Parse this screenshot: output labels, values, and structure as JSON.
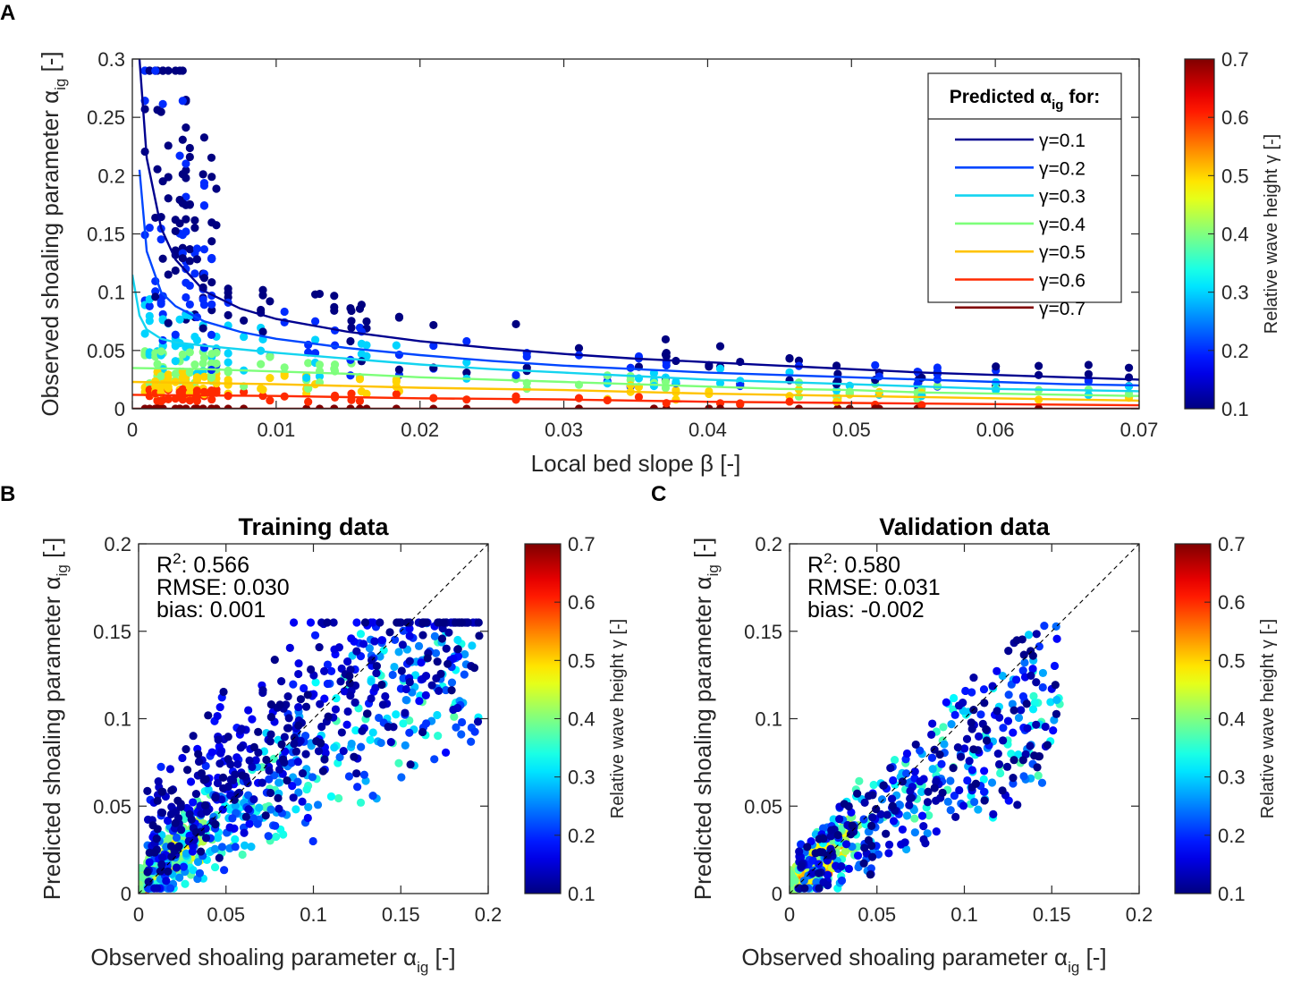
{
  "chart_data": [
    {
      "panel": "A",
      "type": "scatter",
      "title": "",
      "xlabel": "Local bed slope β [-]",
      "ylabel": "Observed shoaling parameter α",
      "ylabel_sub": "ig",
      "ylabel_suffix": " [-]",
      "xlim": [
        0,
        0.07
      ],
      "ylim": [
        0,
        0.3
      ],
      "xticks": [
        0,
        0.01,
        0.02,
        0.03,
        0.04,
        0.05,
        0.06,
        0.07
      ],
      "xtick_labels": [
        "0",
        "0.01",
        "0.02",
        "0.03",
        "0.04",
        "0.05",
        "0.06",
        "0.07"
      ],
      "yticks": [
        0,
        0.05,
        0.1,
        0.15,
        0.2,
        0.25,
        0.3
      ],
      "ytick_labels": [
        "0",
        "0.05",
        "0.1",
        "0.15",
        "0.2",
        "0.25",
        "0.3"
      ],
      "legend_title": "Predicted α",
      "legend_title_sub": "ig",
      "legend_title_suffix": " for:",
      "legend_position": "top-right",
      "series": [
        {
          "name": "γ=0.1",
          "gamma": 0.1,
          "color": "#00008f",
          "x": [
            0.0005,
            0.001,
            0.002,
            0.003,
            0.005,
            0.0075,
            0.01,
            0.015,
            0.02,
            0.025,
            0.03,
            0.035,
            0.04,
            0.045,
            0.05,
            0.055,
            0.06,
            0.065,
            0.07
          ],
          "y": [
            0.3,
            0.215,
            0.155,
            0.128,
            0.101,
            0.086,
            0.077,
            0.066,
            0.058,
            0.052,
            0.047,
            0.043,
            0.04,
            0.037,
            0.034,
            0.031,
            0.029,
            0.027,
            0.025
          ]
        },
        {
          "name": "γ=0.2",
          "gamma": 0.2,
          "color": "#0046ff",
          "x": [
            0.0005,
            0.001,
            0.002,
            0.003,
            0.005,
            0.0075,
            0.01,
            0.015,
            0.02,
            0.025,
            0.03,
            0.035,
            0.04,
            0.045,
            0.05,
            0.055,
            0.06,
            0.065,
            0.07
          ],
          "y": [
            0.205,
            0.135,
            0.1,
            0.088,
            0.075,
            0.066,
            0.06,
            0.052,
            0.046,
            0.041,
            0.037,
            0.034,
            0.031,
            0.029,
            0.027,
            0.025,
            0.023,
            0.021,
            0.02
          ]
        },
        {
          "name": "γ=0.3",
          "gamma": 0.3,
          "color": "#14d4f0",
          "x": [
            0.0,
            0.0005,
            0.001,
            0.002,
            0.003,
            0.005,
            0.0075,
            0.01,
            0.015,
            0.02,
            0.025,
            0.03,
            0.035,
            0.04,
            0.045,
            0.05,
            0.055,
            0.06,
            0.065,
            0.07
          ],
          "y": [
            0.115,
            0.08,
            0.068,
            0.06,
            0.057,
            0.054,
            0.051,
            0.048,
            0.043,
            0.038,
            0.034,
            0.031,
            0.028,
            0.025,
            0.023,
            0.021,
            0.019,
            0.017,
            0.016,
            0.015
          ]
        },
        {
          "name": "γ=0.4",
          "gamma": 0.4,
          "color": "#7dff7a",
          "x": [
            0.0,
            0.005,
            0.01,
            0.015,
            0.02,
            0.025,
            0.03,
            0.035,
            0.04,
            0.045,
            0.05,
            0.055,
            0.06,
            0.065,
            0.07
          ],
          "y": [
            0.035,
            0.034,
            0.032,
            0.03,
            0.027,
            0.025,
            0.023,
            0.021,
            0.019,
            0.017,
            0.016,
            0.014,
            0.013,
            0.012,
            0.011
          ]
        },
        {
          "name": "γ=0.5",
          "gamma": 0.5,
          "color": "#ffc300",
          "x": [
            0.0,
            0.01,
            0.02,
            0.03,
            0.04,
            0.05,
            0.06,
            0.07
          ],
          "y": [
            0.023,
            0.021,
            0.018,
            0.016,
            0.013,
            0.011,
            0.009,
            0.007
          ]
        },
        {
          "name": "γ=0.6",
          "gamma": 0.6,
          "color": "#ff2a00",
          "x": [
            0.0,
            0.01,
            0.02,
            0.03,
            0.04,
            0.05,
            0.06,
            0.07
          ],
          "y": [
            0.012,
            0.011,
            0.009,
            0.008,
            0.006,
            0.005,
            0.004,
            0.003
          ]
        },
        {
          "name": "γ=0.7",
          "gamma": 0.7,
          "color": "#800000",
          "x": [
            0.0,
            0.07
          ],
          "y": [
            0.0,
            0.0
          ]
        }
      ],
      "colorbar": {
        "label": "Relative wave height γ [-]",
        "range": [
          0.1,
          0.7
        ],
        "ticks": [
          0.1,
          0.2,
          0.3,
          0.4,
          0.5,
          0.6,
          0.7
        ],
        "tick_labels": [
          "0.1",
          "0.2",
          "0.3",
          "0.4",
          "0.5",
          "0.6",
          "0.7"
        ],
        "colormap": "jet"
      },
      "scatter_note": "Dense scatter of observations coloured by γ; approximated by generated points following the predicted curves"
    },
    {
      "panel": "B",
      "type": "scatter",
      "title": "Training data",
      "xlabel": "Observed shoaling parameter α",
      "xlabel_sub": "ig",
      "xlabel_suffix": " [-]",
      "ylabel": "Predicted shoaling parameter α",
      "ylabel_sub": "ig",
      "ylabel_suffix": " [-]",
      "xlim": [
        0,
        0.2
      ],
      "ylim": [
        0,
        0.2
      ],
      "xticks": [
        0,
        0.05,
        0.1,
        0.15,
        0.2
      ],
      "xtick_labels": [
        "0",
        "0.05",
        "0.1",
        "0.15",
        "0.2"
      ],
      "yticks": [
        0,
        0.05,
        0.1,
        0.15,
        0.2
      ],
      "ytick_labels": [
        "0",
        "0.05",
        "0.1",
        "0.15",
        "0.2"
      ],
      "reference_line": "1:1 dashed",
      "stats": {
        "r2_label": "R",
        "r2_sup": "2",
        "r2_value": ": 0.566",
        "rmse": "RMSE: 0.030",
        "bias": "bias: 0.001"
      },
      "colorbar": {
        "label": "Relative wave height γ [-]",
        "range": [
          0.1,
          0.7
        ],
        "tick_labels": [
          "0.1",
          "0.2",
          "0.3",
          "0.4",
          "0.5",
          "0.6",
          "0.7"
        ],
        "colormap": "jet"
      }
    },
    {
      "panel": "C",
      "type": "scatter",
      "title": "Validation data",
      "xlabel": "Observed shoaling parameter α",
      "xlabel_sub": "ig",
      "xlabel_suffix": " [-]",
      "ylabel": "Predicted shoaling parameter α",
      "ylabel_sub": "ig",
      "ylabel_suffix": " [-]",
      "xlim": [
        0,
        0.2
      ],
      "ylim": [
        0,
        0.2
      ],
      "xticks": [
        0,
        0.05,
        0.1,
        0.15,
        0.2
      ],
      "xtick_labels": [
        "0",
        "0.05",
        "0.1",
        "0.15",
        "0.2"
      ],
      "yticks": [
        0,
        0.05,
        0.1,
        0.15,
        0.2
      ],
      "ytick_labels": [
        "0",
        "0.05",
        "0.1",
        "0.15",
        "0.2"
      ],
      "reference_line": "1:1 dashed",
      "stats": {
        "r2_label": "R",
        "r2_sup": "2",
        "r2_value": ": 0.580",
        "rmse": "RMSE: 0.031",
        "bias": "bias: -0.002"
      },
      "colorbar": {
        "label": "Relative wave height γ [-]",
        "range": [
          0.1,
          0.7
        ],
        "tick_labels": [
          "0.1",
          "0.2",
          "0.3",
          "0.4",
          "0.5",
          "0.6",
          "0.7"
        ],
        "colormap": "jet"
      }
    }
  ],
  "panel_letters": [
    "A",
    "B",
    "C"
  ]
}
